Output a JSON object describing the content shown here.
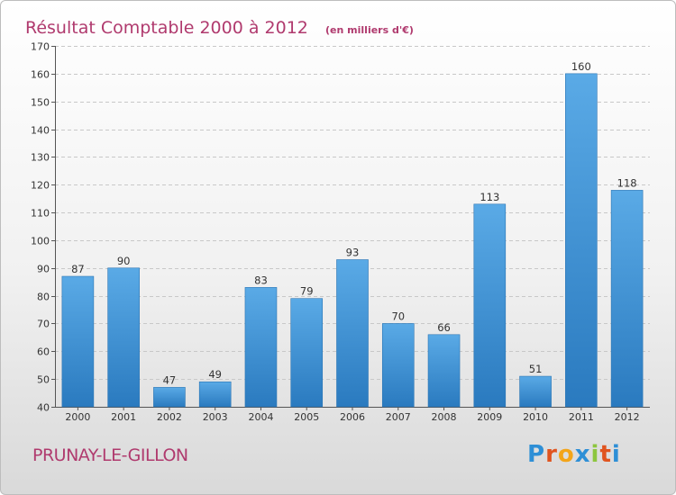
{
  "header": {
    "title": "Résultat Comptable 2000 à 2012",
    "unit": "(en milliers d'€)"
  },
  "footer": {
    "commune": "PRUNAY-LE-GILLON",
    "logo_text": "Proxiti"
  },
  "colors": {
    "title": "#b03a6e",
    "bar_light": "#5aaae6",
    "bar_dark": "#2a7abf",
    "logo": [
      "#2e8fd6",
      "#e0541f",
      "#f3a51a",
      "#2e8fd6",
      "#8dc63f",
      "#e0541f",
      "#2e8fd6"
    ]
  },
  "chart_data": {
    "type": "bar",
    "title": "Résultat Comptable 2000 à 2012",
    "xlabel": "",
    "ylabel": "(en milliers d'€)",
    "categories": [
      "2000",
      "2001",
      "2002",
      "2003",
      "2004",
      "2005",
      "2006",
      "2007",
      "2008",
      "2009",
      "2010",
      "2011",
      "2012"
    ],
    "values": [
      87,
      90,
      47,
      49,
      83,
      79,
      93,
      70,
      66,
      113,
      51,
      160,
      118
    ],
    "ylim": [
      40,
      170
    ],
    "yticks": [
      40,
      50,
      60,
      70,
      80,
      90,
      100,
      110,
      120,
      130,
      140,
      150,
      160,
      170
    ],
    "grid": true
  }
}
